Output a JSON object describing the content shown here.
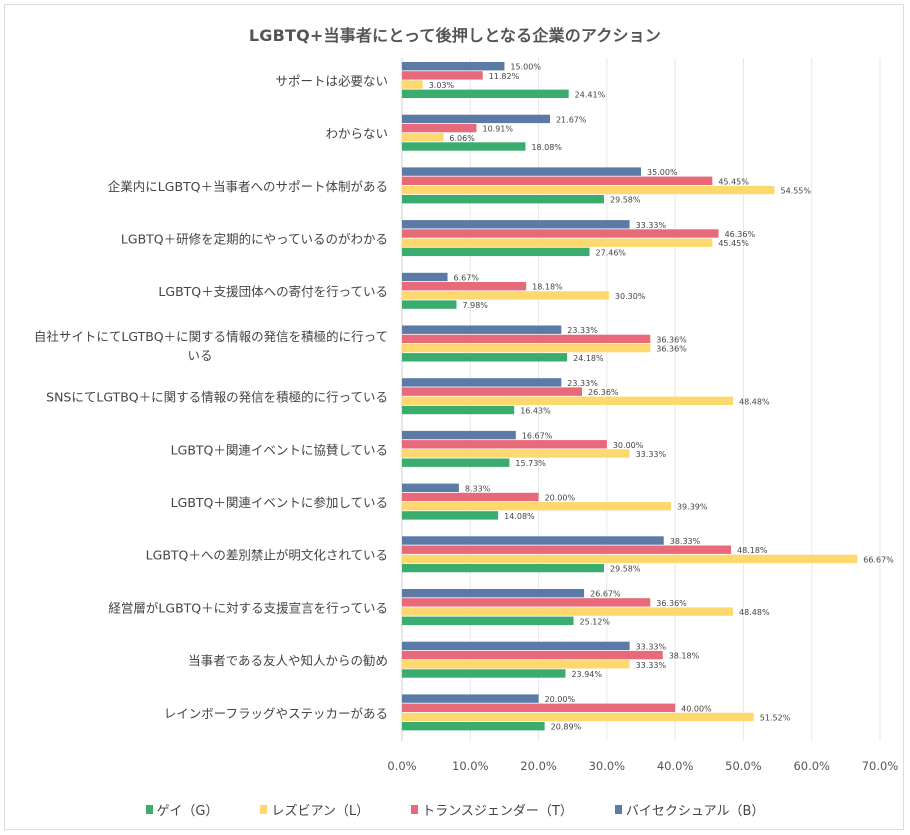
{
  "chart_data": {
    "type": "bar",
    "orientation": "horizontal",
    "title": "LGBTQ+当事者にとって後押しとなる企業のアクション",
    "xlabel": "",
    "ylabel": "",
    "xlim": [
      0,
      70
    ],
    "x_ticks": [
      "0.0%",
      "10.0%",
      "20.0%",
      "30.0%",
      "40.0%",
      "50.0%",
      "60.0%",
      "70.0%"
    ],
    "x_tick_values": [
      0,
      10,
      20,
      30,
      40,
      50,
      60,
      70
    ],
    "grid": true,
    "legend_position": "bottom",
    "categories": [
      "サポートは必要ない",
      "わからない",
      "企業内にLGBTQ＋当事者へのサポート体制がある",
      "LGBTQ＋研修を定期的にやっているのがわかる",
      "LGBTQ＋支援団体への寄付を行っている",
      "自社サイトにてLGTBQ＋に関する情報の発信を積極的に行っている",
      "SNSにてLGTBQ＋に関する情報の発信を積極的に行っている",
      "LGBTQ＋関連イベントに協賛している",
      "LGBTQ＋関連イベントに参加している",
      "LGBTQ＋への差別禁止が明文化されている",
      "経営層がLGBTQ＋に対する支援宣言を行っている",
      "当事者である友人や知人からの勧め",
      "レインボーフラッグやステッカーがある"
    ],
    "series": [
      {
        "name": "バイセクシュアル（B）",
        "color": "#5b7aa6",
        "values": [
          15.0,
          21.67,
          35.0,
          33.33,
          6.67,
          23.33,
          23.33,
          16.67,
          8.33,
          38.33,
          26.67,
          33.33,
          20.0
        ]
      },
      {
        "name": "トランスジェンダー（T）",
        "color": "#e8697a",
        "values": [
          11.82,
          10.91,
          45.45,
          46.36,
          18.18,
          36.36,
          26.36,
          30.0,
          20.0,
          48.18,
          36.36,
          38.18,
          40.0
        ]
      },
      {
        "name": "レズビアン（L）",
        "color": "#fdd86e",
        "values": [
          3.03,
          6.06,
          54.55,
          45.45,
          30.3,
          36.36,
          48.48,
          33.33,
          39.39,
          66.67,
          48.48,
          33.33,
          51.52
        ]
      },
      {
        "name": "ゲイ（G）",
        "color": "#3aac6e",
        "values": [
          24.41,
          18.08,
          29.58,
          27.46,
          7.98,
          24.18,
          16.43,
          15.73,
          14.08,
          29.58,
          25.12,
          23.94,
          20.89
        ]
      }
    ],
    "legend_order": [
      "ゲイ（G）",
      "レズビアン（L）",
      "トランスジェンダー（T）",
      "バイセクシュアル（B）"
    ],
    "value_format": "%.2f%"
  }
}
